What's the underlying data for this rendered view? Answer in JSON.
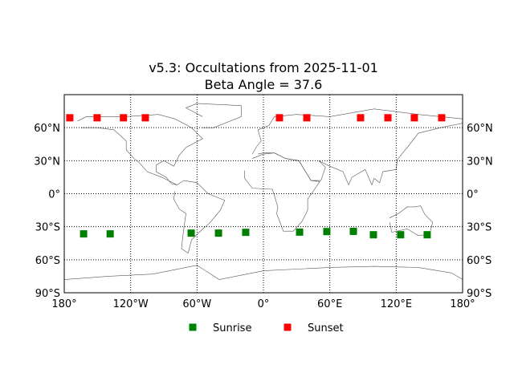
{
  "chart_data": {
    "type": "scatter",
    "title": "v5.3: Occultations from 2025-11-01",
    "subtitle": "Beta Angle = 37.6",
    "xlabel": "",
    "ylabel": "",
    "xlim": [
      -180,
      180
    ],
    "ylim": [
      -90,
      90
    ],
    "grid": true,
    "x_ticks": [
      -180,
      -120,
      -60,
      0,
      60,
      120,
      180
    ],
    "x_tick_labels": [
      "180°",
      "120°W",
      "60°W",
      "0°",
      "60°E",
      "120°E",
      "180°"
    ],
    "y_ticks": [
      60,
      30,
      0,
      -30,
      -60,
      -90
    ],
    "y_tick_labels": [
      "60°N",
      "30°N",
      "0°",
      "30°S",
      "60°S",
      "90°S"
    ],
    "legend_position": "bottom-center",
    "series": [
      {
        "name": "Sunrise",
        "color": "#008000",
        "marker": "square",
        "lon": [
          -162.5,
          -138.5,
          -65.3,
          -40.6,
          -16.0,
          32.7,
          57.3,
          81.3,
          99.4,
          124.0,
          148.0
        ],
        "lat": [
          -36.5,
          -36.5,
          -35.8,
          -35.8,
          -35.1,
          -34.9,
          -34.4,
          -34.2,
          -37.3,
          -37.3,
          -37.3
        ]
      },
      {
        "name": "Sunset",
        "color": "#ff0000",
        "marker": "square",
        "lon": [
          -175.0,
          -150.3,
          -126.5,
          -106.7,
          14.5,
          39.2,
          87.8,
          112.5,
          136.4,
          161.1
        ],
        "lat": [
          69,
          69,
          69,
          69,
          69,
          69,
          69,
          69,
          69,
          69
        ]
      }
    ]
  }
}
